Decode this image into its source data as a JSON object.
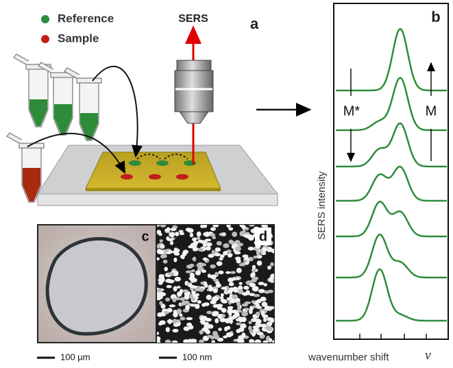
{
  "legend": {
    "reference": "Reference",
    "sample": "Sample"
  },
  "panel_a": {
    "label": "a",
    "beam_label": "SERS"
  },
  "panel_b": {
    "label": "b",
    "left_arrow_label": "M*",
    "right_arrow_label": "M",
    "y_axis_label": "SERS intensity",
    "x_axis_label": "wavenumber shift",
    "x_axis_symbol": "ν"
  },
  "panel_c": {
    "label": "c",
    "scale_bar": "100 µm"
  },
  "panel_d": {
    "label": "d",
    "scale_bar": "100 nm"
  }
}
